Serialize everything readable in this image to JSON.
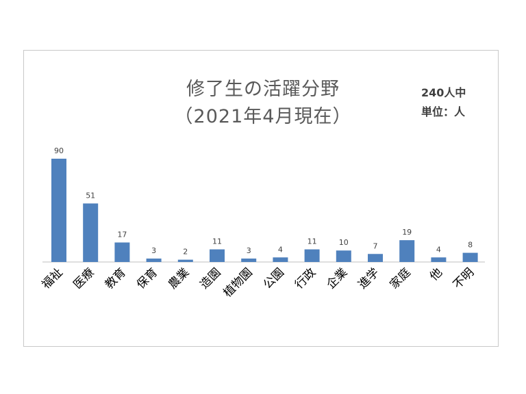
{
  "chart_data": {
    "type": "bar",
    "title": "修了生の活躍分野",
    "subtitle": "（2021年4月現在）",
    "notes": [
      "240人中",
      "単位：人"
    ],
    "categories": [
      "福祉",
      "医療",
      "教育",
      "保育",
      "農業",
      "造園",
      "植物園",
      "公園",
      "行政",
      "企業",
      "進学",
      "家庭",
      "他",
      "不明"
    ],
    "values": [
      90,
      51,
      17,
      3,
      2,
      11,
      3,
      4,
      11,
      10,
      7,
      19,
      4,
      8
    ],
    "bar_color": "#4f81bd",
    "data_labels": true,
    "grid": false
  }
}
